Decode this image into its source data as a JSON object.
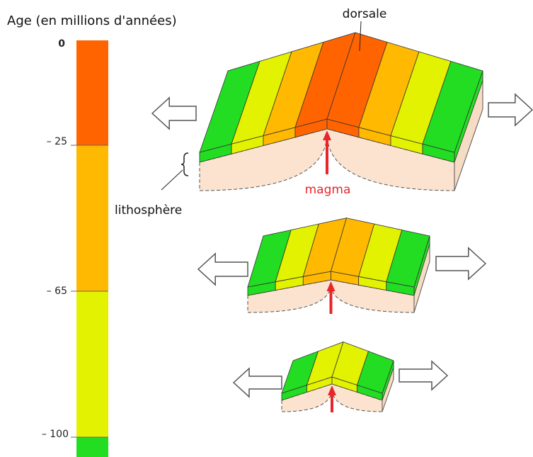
{
  "scale": {
    "title": "Age (en millions d'années)",
    "ticks": [
      "0",
      "– 25",
      "– 65",
      "– 100"
    ]
  },
  "labels": {
    "ridge": "dorsale",
    "lithosphere": "lithosphère",
    "magma": "magma"
  }
}
